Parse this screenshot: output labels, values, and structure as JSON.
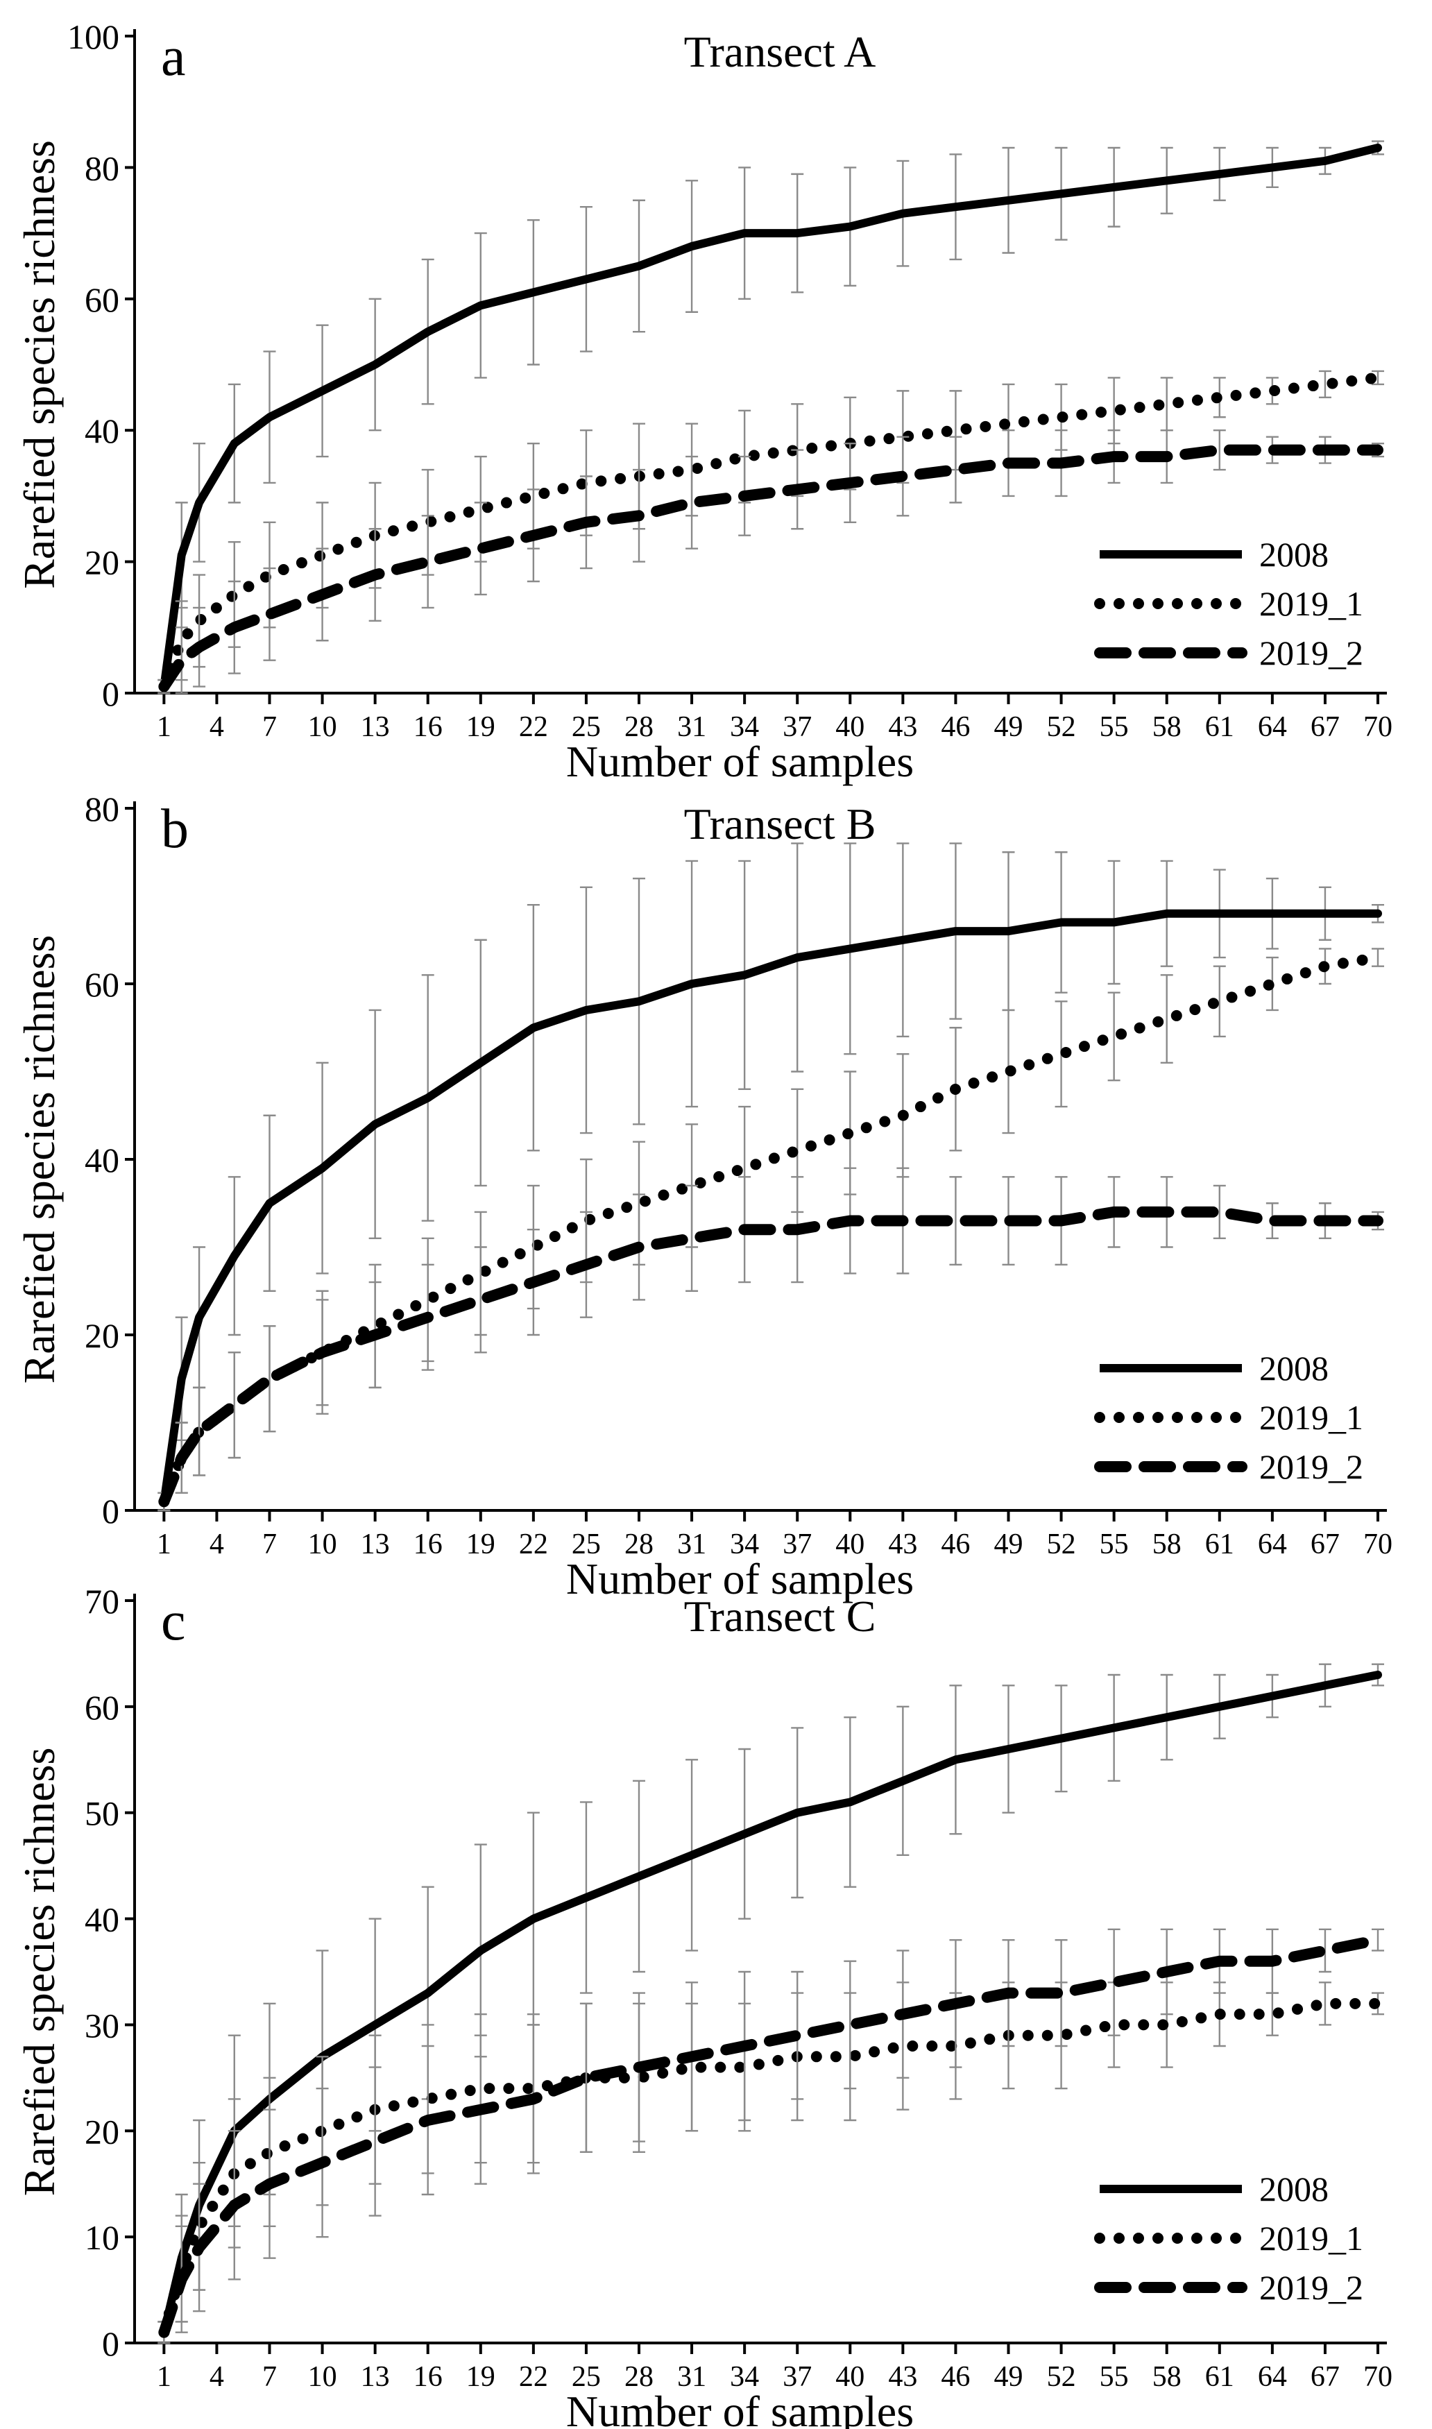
{
  "chart_data": [
    {
      "type": "line",
      "panel_label": "a",
      "title": "Transect A",
      "xlabel": "Number of samples",
      "ylabel": "Rarefied species richness",
      "xlim": [
        0,
        70
      ],
      "ylim": [
        0,
        100
      ],
      "yticks": [
        0,
        20,
        40,
        60,
        80,
        100
      ],
      "xticks": [
        1,
        4,
        7,
        10,
        13,
        16,
        19,
        22,
        25,
        28,
        31,
        34,
        37,
        40,
        43,
        46,
        49,
        52,
        55,
        58,
        61,
        64,
        67,
        70
      ],
      "legend_position": "bottom-right",
      "series": [
        {
          "name": "2008",
          "style": "solid",
          "x": [
            1,
            2,
            3,
            5,
            7,
            10,
            13,
            16,
            19,
            22,
            25,
            28,
            31,
            34,
            37,
            40,
            43,
            46,
            49,
            52,
            55,
            58,
            61,
            64,
            67,
            70
          ],
          "y": [
            1,
            21,
            29,
            38,
            42,
            46,
            50,
            55,
            59,
            61,
            63,
            65,
            68,
            70,
            70,
            71,
            73,
            74,
            75,
            76,
            77,
            78,
            79,
            80,
            81,
            83
          ],
          "err": [
            1,
            8,
            9,
            9,
            10,
            10,
            10,
            11,
            11,
            11,
            11,
            10,
            10,
            10,
            9,
            9,
            8,
            8,
            8,
            7,
            6,
            5,
            4,
            3,
            2,
            1
          ]
        },
        {
          "name": "2019_1",
          "style": "dotted",
          "x": [
            1,
            2,
            3,
            5,
            7,
            10,
            13,
            16,
            19,
            22,
            25,
            28,
            31,
            34,
            37,
            40,
            43,
            46,
            49,
            52,
            55,
            58,
            61,
            64,
            67,
            70
          ],
          "y": [
            1,
            8,
            11,
            15,
            18,
            21,
            24,
            26,
            28,
            30,
            32,
            33,
            34,
            36,
            37,
            38,
            39,
            40,
            41,
            42,
            43,
            44,
            45,
            46,
            47,
            48
          ],
          "err": [
            1,
            6,
            7,
            8,
            8,
            8,
            8,
            8,
            8,
            8,
            8,
            8,
            7,
            7,
            7,
            7,
            7,
            6,
            6,
            5,
            5,
            4,
            3,
            2,
            2,
            1
          ]
        },
        {
          "name": "2019_2",
          "style": "dashed",
          "x": [
            1,
            2,
            3,
            5,
            7,
            10,
            13,
            16,
            19,
            22,
            25,
            28,
            31,
            34,
            37,
            40,
            43,
            46,
            49,
            52,
            55,
            58,
            61,
            64,
            67,
            70
          ],
          "y": [
            1,
            5,
            7,
            10,
            12,
            15,
            18,
            20,
            22,
            24,
            26,
            27,
            29,
            30,
            31,
            32,
            33,
            34,
            35,
            35,
            36,
            36,
            37,
            37,
            37,
            37
          ],
          "err": [
            1,
            5,
            6,
            7,
            7,
            7,
            7,
            7,
            7,
            7,
            7,
            7,
            7,
            6,
            6,
            6,
            6,
            5,
            5,
            5,
            4,
            4,
            3,
            2,
            2,
            1
          ]
        }
      ]
    },
    {
      "type": "line",
      "panel_label": "b",
      "title": "Transect B",
      "xlabel": "Number of samples",
      "ylabel": "Rarefied species richness",
      "xlim": [
        0,
        70
      ],
      "ylim": [
        0,
        80
      ],
      "yticks": [
        0,
        20,
        40,
        60,
        80
      ],
      "xticks": [
        1,
        4,
        7,
        10,
        13,
        16,
        19,
        22,
        25,
        28,
        31,
        34,
        37,
        40,
        43,
        46,
        49,
        52,
        55,
        58,
        61,
        64,
        67,
        70
      ],
      "legend_position": "bottom-right",
      "series": [
        {
          "name": "2008",
          "style": "solid",
          "x": [
            1,
            2,
            3,
            5,
            7,
            10,
            13,
            16,
            19,
            22,
            25,
            28,
            31,
            34,
            37,
            40,
            43,
            46,
            49,
            52,
            55,
            58,
            61,
            64,
            67,
            70
          ],
          "y": [
            1,
            15,
            22,
            29,
            35,
            39,
            44,
            47,
            51,
            55,
            57,
            58,
            60,
            61,
            63,
            64,
            65,
            66,
            66,
            67,
            67,
            68,
            68,
            68,
            68,
            68
          ],
          "err": [
            1,
            7,
            8,
            9,
            10,
            12,
            13,
            14,
            14,
            14,
            14,
            14,
            14,
            13,
            13,
            12,
            11,
            10,
            9,
            8,
            7,
            6,
            5,
            4,
            3,
            1
          ]
        },
        {
          "name": "2019_1",
          "style": "dotted",
          "x": [
            1,
            2,
            3,
            5,
            7,
            10,
            13,
            16,
            19,
            22,
            25,
            28,
            31,
            34,
            37,
            40,
            43,
            46,
            49,
            52,
            55,
            58,
            61,
            64,
            67,
            70
          ],
          "y": [
            1,
            6,
            9,
            12,
            15,
            18,
            21,
            24,
            27,
            30,
            33,
            35,
            37,
            39,
            41,
            43,
            45,
            48,
            50,
            52,
            54,
            56,
            58,
            60,
            62,
            63
          ],
          "err": [
            1,
            4,
            5,
            6,
            6,
            7,
            7,
            7,
            7,
            7,
            7,
            7,
            7,
            7,
            7,
            7,
            7,
            7,
            7,
            6,
            5,
            5,
            4,
            3,
            2,
            1
          ]
        },
        {
          "name": "2019_2",
          "style": "dashed",
          "x": [
            1,
            2,
            3,
            5,
            7,
            10,
            13,
            16,
            19,
            22,
            25,
            28,
            31,
            34,
            37,
            40,
            43,
            46,
            49,
            52,
            55,
            58,
            61,
            64,
            67,
            70
          ],
          "y": [
            1,
            6,
            9,
            12,
            15,
            18,
            20,
            22,
            24,
            26,
            28,
            30,
            31,
            32,
            32,
            33,
            33,
            33,
            33,
            33,
            34,
            34,
            34,
            33,
            33,
            33
          ],
          "err": [
            1,
            4,
            5,
            6,
            6,
            6,
            6,
            6,
            6,
            6,
            6,
            6,
            6,
            6,
            6,
            6,
            6,
            5,
            5,
            5,
            4,
            4,
            3,
            2,
            2,
            1
          ]
        }
      ]
    },
    {
      "type": "line",
      "panel_label": "c",
      "title": "Transect C",
      "xlabel": "Number of samples",
      "ylabel": "Rarefied species richness",
      "xlim": [
        0,
        70
      ],
      "ylim": [
        0,
        70
      ],
      "yticks": [
        0,
        10,
        20,
        30,
        40,
        50,
        60,
        70
      ],
      "xticks": [
        1,
        4,
        7,
        10,
        13,
        16,
        19,
        22,
        25,
        28,
        31,
        34,
        37,
        40,
        43,
        46,
        49,
        52,
        55,
        58,
        61,
        64,
        67,
        70
      ],
      "legend_position": "bottom-right",
      "series": [
        {
          "name": "2008",
          "style": "solid",
          "x": [
            1,
            2,
            3,
            5,
            7,
            10,
            13,
            16,
            19,
            22,
            25,
            28,
            31,
            34,
            37,
            40,
            43,
            46,
            49,
            52,
            55,
            58,
            61,
            64,
            67,
            70
          ],
          "y": [
            1,
            8,
            13,
            20,
            23,
            27,
            30,
            33,
            37,
            40,
            42,
            44,
            46,
            48,
            50,
            51,
            53,
            55,
            56,
            57,
            58,
            59,
            60,
            61,
            62,
            63
          ],
          "err": [
            1,
            6,
            8,
            9,
            9,
            10,
            10,
            10,
            10,
            10,
            9,
            9,
            9,
            8,
            8,
            8,
            7,
            7,
            6,
            5,
            5,
            4,
            3,
            2,
            2,
            1
          ]
        },
        {
          "name": "2019_1",
          "style": "dotted",
          "x": [
            1,
            2,
            3,
            5,
            7,
            10,
            13,
            16,
            19,
            22,
            25,
            28,
            31,
            34,
            37,
            40,
            43,
            46,
            49,
            52,
            55,
            58,
            61,
            64,
            67,
            70
          ],
          "y": [
            1,
            7,
            11,
            16,
            18,
            20,
            22,
            23,
            24,
            24,
            25,
            25,
            26,
            26,
            27,
            27,
            28,
            28,
            29,
            29,
            30,
            30,
            31,
            31,
            32,
            32
          ],
          "err": [
            1,
            5,
            6,
            7,
            7,
            7,
            7,
            7,
            7,
            7,
            7,
            7,
            6,
            6,
            6,
            6,
            6,
            5,
            5,
            5,
            4,
            4,
            3,
            2,
            2,
            1
          ]
        },
        {
          "name": "2019_2",
          "style": "dashed",
          "x": [
            1,
            2,
            3,
            5,
            7,
            10,
            13,
            16,
            19,
            22,
            25,
            28,
            31,
            34,
            37,
            40,
            43,
            46,
            49,
            52,
            55,
            58,
            61,
            64,
            67,
            70
          ],
          "y": [
            1,
            6,
            9,
            13,
            15,
            17,
            19,
            21,
            22,
            23,
            25,
            26,
            27,
            28,
            29,
            30,
            31,
            32,
            33,
            33,
            34,
            35,
            36,
            36,
            37,
            38
          ],
          "err": [
            1,
            5,
            6,
            7,
            7,
            7,
            7,
            7,
            7,
            7,
            7,
            7,
            7,
            7,
            6,
            6,
            6,
            6,
            5,
            5,
            5,
            4,
            3,
            3,
            2,
            1
          ]
        }
      ]
    }
  ]
}
